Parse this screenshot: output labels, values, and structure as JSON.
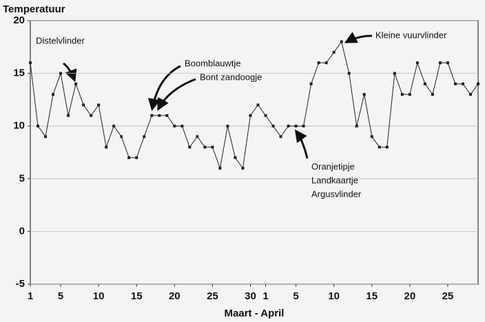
{
  "chart_data": {
    "type": "line",
    "y_axis_label": "Temperatuur",
    "x_axis_label": "Maart - April",
    "categories": [
      "1",
      null,
      null,
      null,
      "5",
      null,
      null,
      null,
      null,
      "10",
      null,
      null,
      null,
      null,
      "15",
      null,
      null,
      null,
      null,
      "20",
      null,
      null,
      null,
      null,
      "25",
      null,
      null,
      null,
      null,
      "30",
      null,
      "1",
      null,
      null,
      null,
      "5",
      null,
      null,
      null,
      null,
      "10",
      null,
      null,
      null,
      null,
      "15",
      null,
      null,
      null,
      null,
      "20",
      null,
      null,
      null,
      null,
      "25",
      null,
      null,
      null,
      null
    ],
    "values": [
      16,
      10,
      9,
      13,
      15,
      11,
      14,
      12,
      11,
      12,
      8,
      10,
      9,
      7,
      7,
      9,
      11,
      11,
      11,
      10,
      10,
      8,
      9,
      8,
      8,
      6,
      10,
      7,
      6,
      11,
      12,
      11,
      10,
      9,
      10,
      10,
      10,
      14,
      16,
      16,
      17,
      18,
      15,
      10,
      13,
      9,
      8,
      8,
      15,
      13,
      13,
      16,
      14,
      13,
      16,
      16,
      14,
      14,
      13,
      14
    ],
    "color": "#222222",
    "ylim": [
      -5,
      20
    ],
    "yticks": [
      -5,
      0,
      5,
      10,
      15,
      20
    ],
    "grid": true,
    "annotations": [
      {
        "text": "Distelvlinder"
      },
      {
        "text": "Boomblauwtje"
      },
      {
        "text": "Bont zandoogje"
      },
      {
        "text": "Kleine vuurvlinder"
      },
      {
        "lines": [
          "Oranjetipje",
          "Landkaartje",
          "Argusvlinder"
        ]
      }
    ]
  }
}
